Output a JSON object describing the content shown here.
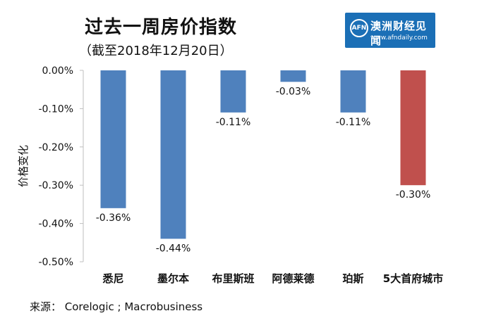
{
  "header": {
    "title": "过去一周房价指数",
    "subtitle": "（截至2018年12月20日）"
  },
  "logo": {
    "mark": "AFN",
    "name": "澳洲财经见闻",
    "url": "www.afndaily.com"
  },
  "footer": {
    "source": "来源： Corelogic ; Macrobusiness"
  },
  "colors": {
    "bar_default": "#4f81bd",
    "bar_highlight": "#c0504d",
    "axis": "#bfbfbf"
  },
  "chart_data": {
    "type": "bar",
    "title": "过去一周房价指数",
    "xlabel": "",
    "ylabel": "价格变化",
    "ylim": [
      -0.5,
      0
    ],
    "grid": false,
    "categories": [
      "悉尼",
      "墨尔本",
      "布里斯班",
      "阿德莱德",
      "珀斯",
      "5大首府城市"
    ],
    "values": [
      -0.36,
      -0.44,
      -0.11,
      -0.03,
      -0.11,
      -0.3
    ],
    "value_labels": [
      "-0.36%",
      "-0.44%",
      "-0.11%",
      "-0.03%",
      "-0.11%",
      "-0.30%"
    ],
    "highlight_index": 5,
    "y_ticks": [
      0,
      -0.1,
      -0.2,
      -0.3,
      -0.4,
      -0.5
    ],
    "y_tick_labels": [
      "0.00%",
      "-0.10%",
      "-0.20%",
      "-0.30%",
      "-0.40%",
      "-0.50%"
    ]
  }
}
